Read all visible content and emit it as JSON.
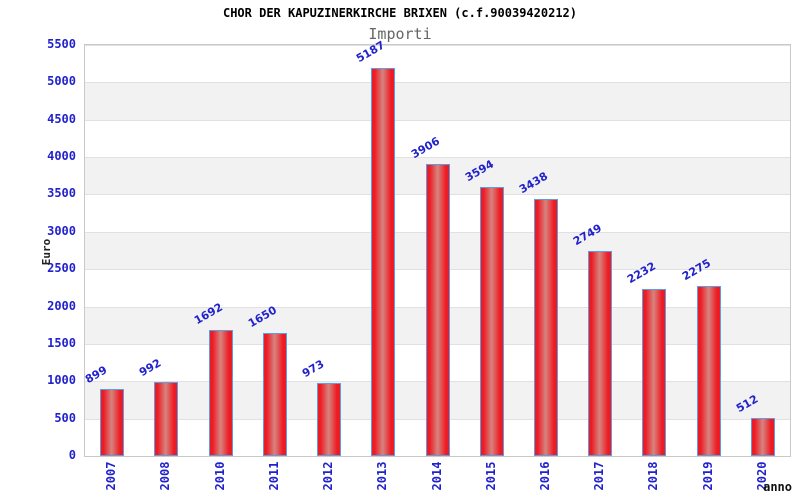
{
  "title": "CHOR DER KAPUZINERKIRCHE BRIXEN (c.f.90039420212)",
  "subtitle": "Importi",
  "axes": {
    "y_label": "Euro",
    "x_label": "anno"
  },
  "chart_data": {
    "type": "bar",
    "title": "CHOR DER KAPUZINERKIRCHE BRIXEN (c.f.90039420212)",
    "subtitle": "Importi",
    "categories": [
      "2007",
      "2008",
      "2010",
      "2011",
      "2012",
      "2013",
      "2014",
      "2015",
      "2016",
      "2017",
      "2018",
      "2019",
      "2020"
    ],
    "values": [
      899,
      992,
      1692,
      1650,
      973,
      5187,
      3906,
      3594,
      3438,
      2749,
      2232,
      2275,
      512
    ],
    "xlabel": "anno",
    "ylabel": "Euro",
    "ylim": [
      0,
      5500
    ],
    "y_ticks": [
      0,
      500,
      1000,
      1500,
      2000,
      2500,
      3000,
      3500,
      4000,
      4500,
      5000,
      5500
    ],
    "grid": true,
    "legend_position": "none",
    "colors": {
      "bar": "#ed1c24",
      "bar_highlight": "#d6847f",
      "bar_border": "#5b9ee6",
      "tick_label": "#2222cc",
      "value_label": "#2222cc",
      "band": "#f2f2f2",
      "gridline": "#e1e1e1",
      "plot_border": "#c9c9c9",
      "title": "#000000",
      "subtitle": "#666666",
      "axis_label": "#222222"
    }
  }
}
